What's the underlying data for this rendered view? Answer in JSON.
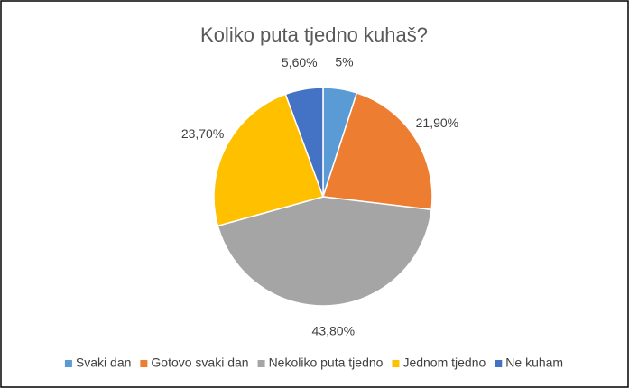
{
  "chart_data": {
    "type": "pie",
    "title": "Koliko puta tjedno kuhaš?",
    "categories": [
      "Svaki dan",
      "Gotovo svaki dan",
      "Nekoliko puta tjedno",
      "Jednom tjedno",
      "Ne kuham"
    ],
    "values": [
      5,
      21.9,
      43.8,
      23.7,
      5.6
    ],
    "value_labels": [
      "5%",
      "21,90%",
      "43,80%",
      "23,70%",
      "5,60%"
    ],
    "colors": [
      "#5b9bd5",
      "#ed7d31",
      "#a5a5a5",
      "#ffc000",
      "#4472c4"
    ],
    "legend": "bottom"
  }
}
